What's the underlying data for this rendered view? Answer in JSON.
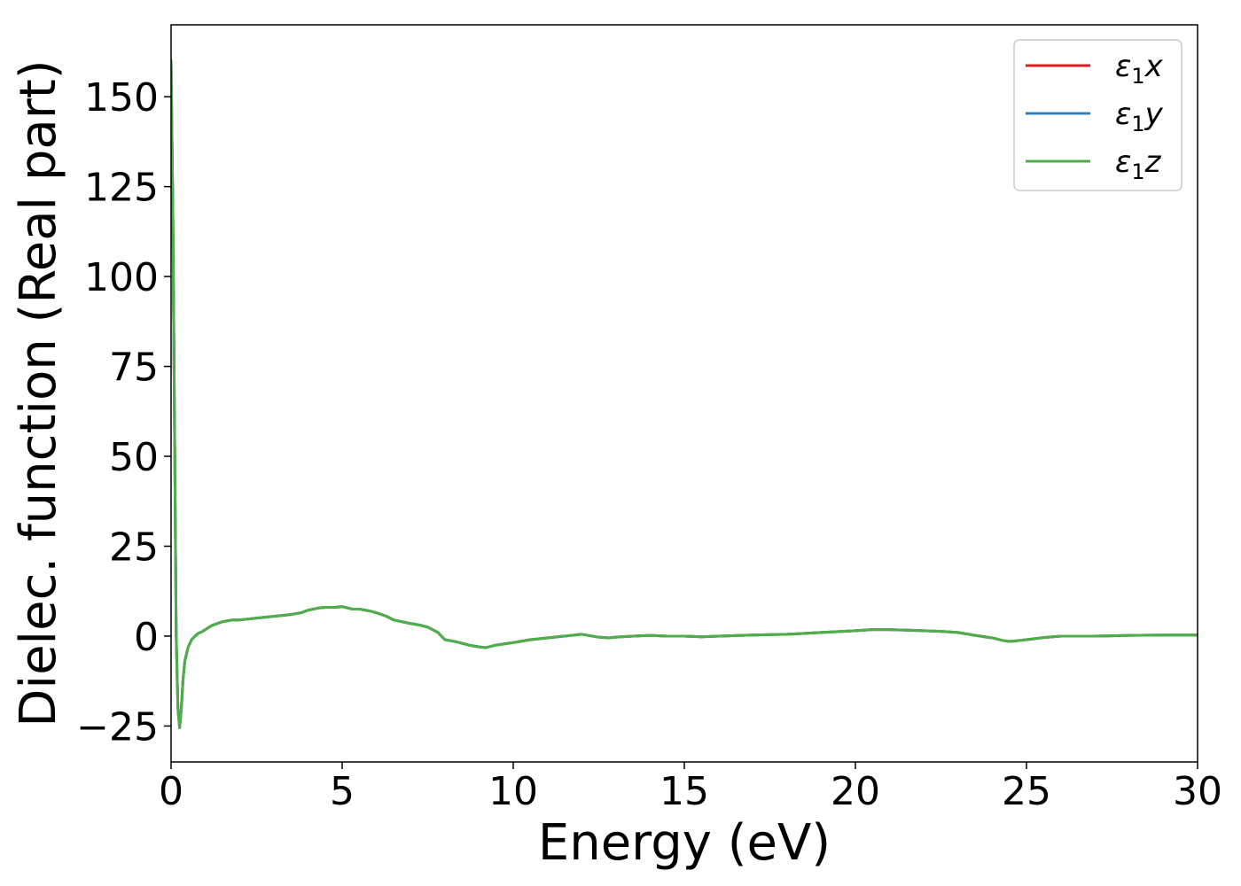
{
  "chart_data": {
    "type": "line",
    "title": "",
    "xlabel": "Energy (eV)",
    "ylabel": "Dielec. function (Real part)",
    "xlim": [
      0,
      30
    ],
    "ylim": [
      -35,
      170
    ],
    "xticks": [
      0,
      5,
      10,
      15,
      20,
      25,
      30
    ],
    "yticks": [
      -25,
      0,
      25,
      50,
      75,
      100,
      125,
      150
    ],
    "ytick_labels": [
      "−25",
      "0",
      "25",
      "50",
      "75",
      "100",
      "125",
      "150"
    ],
    "grid": false,
    "legend_position": "top-right",
    "series": [
      {
        "name": "ε1x",
        "legend_base": "ε",
        "legend_sub": "1",
        "legend_suffix": "x",
        "color": "#e41a1c",
        "x": [
          0.0,
          0.05,
          0.1,
          0.15,
          0.2,
          0.25,
          0.3,
          0.35,
          0.4,
          0.5,
          0.6,
          0.7,
          0.8,
          0.9,
          1.0,
          1.2,
          1.5,
          1.8,
          2.0,
          2.3,
          2.5,
          3.0,
          3.5,
          3.8,
          4.0,
          4.3,
          4.5,
          4.8,
          5.0,
          5.3,
          5.5,
          5.8,
          6.0,
          6.3,
          6.5,
          7.0,
          7.3,
          7.5,
          7.8,
          8.0,
          8.3,
          8.5,
          8.7,
          9.0,
          9.2,
          9.5,
          10.0,
          10.5,
          11.0,
          11.5,
          12.0,
          12.5,
          12.8,
          13.0,
          13.5,
          14.0,
          14.5,
          15.0,
          15.5,
          16.0,
          17.0,
          18.0,
          19.0,
          20.0,
          20.5,
          21.0,
          22.0,
          22.5,
          23.0,
          23.5,
          24.0,
          24.3,
          24.5,
          25.0,
          25.5,
          26.0,
          27.0,
          28.0,
          29.0,
          30.0
        ],
        "y": [
          160,
          120,
          60,
          0,
          -20,
          -25.5,
          -20,
          -12,
          -7,
          -3,
          -1,
          0,
          0.8,
          1.2,
          1.8,
          3,
          4,
          4.5,
          4.5,
          4.8,
          5,
          5.5,
          6,
          6.5,
          7.2,
          7.8,
          8,
          8,
          8.2,
          7.5,
          7.5,
          7,
          6.5,
          5.5,
          4.5,
          3.5,
          3,
          2.5,
          1,
          -1,
          -1.5,
          -2,
          -2.5,
          -3,
          -3.2,
          -2.5,
          -1.8,
          -1,
          -0.5,
          0,
          0.5,
          -0.3,
          -0.5,
          -0.3,
          0,
          0.2,
          0,
          0,
          -0.2,
          0,
          0.3,
          0.5,
          1,
          1.5,
          1.8,
          1.8,
          1.5,
          1.3,
          1,
          0.2,
          -0.5,
          -1.2,
          -1.5,
          -1,
          -0.4,
          0,
          0,
          0.2,
          0.3,
          0.3
        ]
      },
      {
        "name": "ε1y",
        "legend_base": "ε",
        "legend_sub": "1",
        "legend_suffix": "y",
        "color": "#377eb8",
        "x": [
          0.0,
          0.05,
          0.1,
          0.15,
          0.2,
          0.25,
          0.3,
          0.35,
          0.4,
          0.5,
          0.6,
          0.7,
          0.8,
          0.9,
          1.0,
          1.2,
          1.5,
          1.8,
          2.0,
          2.3,
          2.5,
          3.0,
          3.5,
          3.8,
          4.0,
          4.3,
          4.5,
          4.8,
          5.0,
          5.3,
          5.5,
          5.8,
          6.0,
          6.3,
          6.5,
          7.0,
          7.3,
          7.5,
          7.8,
          8.0,
          8.3,
          8.5,
          8.7,
          9.0,
          9.2,
          9.5,
          10.0,
          10.5,
          11.0,
          11.5,
          12.0,
          12.5,
          12.8,
          13.0,
          13.5,
          14.0,
          14.5,
          15.0,
          15.5,
          16.0,
          17.0,
          18.0,
          19.0,
          20.0,
          20.5,
          21.0,
          22.0,
          22.5,
          23.0,
          23.5,
          24.0,
          24.3,
          24.5,
          25.0,
          25.5,
          26.0,
          27.0,
          28.0,
          29.0,
          30.0
        ],
        "y": [
          160,
          120,
          60,
          0,
          -20,
          -25.5,
          -20,
          -12,
          -7,
          -3,
          -1,
          0,
          0.8,
          1.2,
          1.8,
          3,
          4,
          4.5,
          4.5,
          4.8,
          5,
          5.5,
          6,
          6.5,
          7.2,
          7.8,
          8,
          8,
          8.2,
          7.5,
          7.5,
          7,
          6.5,
          5.5,
          4.5,
          3.5,
          3,
          2.5,
          1,
          -1,
          -1.5,
          -2,
          -2.5,
          -3,
          -3.2,
          -2.5,
          -1.8,
          -1,
          -0.5,
          0,
          0.5,
          -0.3,
          -0.5,
          -0.3,
          0,
          0.2,
          0,
          0,
          -0.2,
          0,
          0.3,
          0.5,
          1,
          1.5,
          1.8,
          1.8,
          1.5,
          1.3,
          1,
          0.2,
          -0.5,
          -1.2,
          -1.5,
          -1,
          -0.4,
          0,
          0,
          0.2,
          0.3,
          0.3
        ]
      },
      {
        "name": "ε1z",
        "legend_base": "ε",
        "legend_sub": "1",
        "legend_suffix": "z",
        "color": "#4daf4a",
        "x": [
          0.0,
          0.05,
          0.1,
          0.15,
          0.2,
          0.25,
          0.3,
          0.35,
          0.4,
          0.5,
          0.6,
          0.7,
          0.8,
          0.9,
          1.0,
          1.2,
          1.5,
          1.8,
          2.0,
          2.3,
          2.5,
          3.0,
          3.5,
          3.8,
          4.0,
          4.3,
          4.5,
          4.8,
          5.0,
          5.3,
          5.5,
          5.8,
          6.0,
          6.3,
          6.5,
          7.0,
          7.3,
          7.5,
          7.8,
          8.0,
          8.3,
          8.5,
          8.7,
          9.0,
          9.2,
          9.5,
          10.0,
          10.5,
          11.0,
          11.5,
          12.0,
          12.5,
          12.8,
          13.0,
          13.5,
          14.0,
          14.5,
          15.0,
          15.5,
          16.0,
          17.0,
          18.0,
          19.0,
          20.0,
          20.5,
          21.0,
          22.0,
          22.5,
          23.0,
          23.5,
          24.0,
          24.3,
          24.5,
          25.0,
          25.5,
          26.0,
          27.0,
          28.0,
          29.0,
          30.0
        ],
        "y": [
          160,
          120,
          60,
          0,
          -20,
          -25.5,
          -20,
          -12,
          -7,
          -3,
          -1,
          0,
          0.8,
          1.2,
          1.8,
          3,
          4,
          4.5,
          4.5,
          4.8,
          5,
          5.5,
          6,
          6.5,
          7.2,
          7.8,
          8,
          8,
          8.2,
          7.5,
          7.5,
          7,
          6.5,
          5.5,
          4.5,
          3.5,
          3,
          2.5,
          1,
          -1,
          -1.5,
          -2,
          -2.5,
          -3,
          -3.2,
          -2.5,
          -1.8,
          -1,
          -0.5,
          0,
          0.5,
          -0.3,
          -0.5,
          -0.3,
          0,
          0.2,
          0,
          0,
          -0.2,
          0,
          0.3,
          0.5,
          1,
          1.5,
          1.8,
          1.8,
          1.5,
          1.3,
          1,
          0.2,
          -0.5,
          -1.2,
          -1.5,
          -1,
          -0.4,
          0,
          0,
          0.2,
          0.3,
          0.3
        ]
      }
    ]
  }
}
